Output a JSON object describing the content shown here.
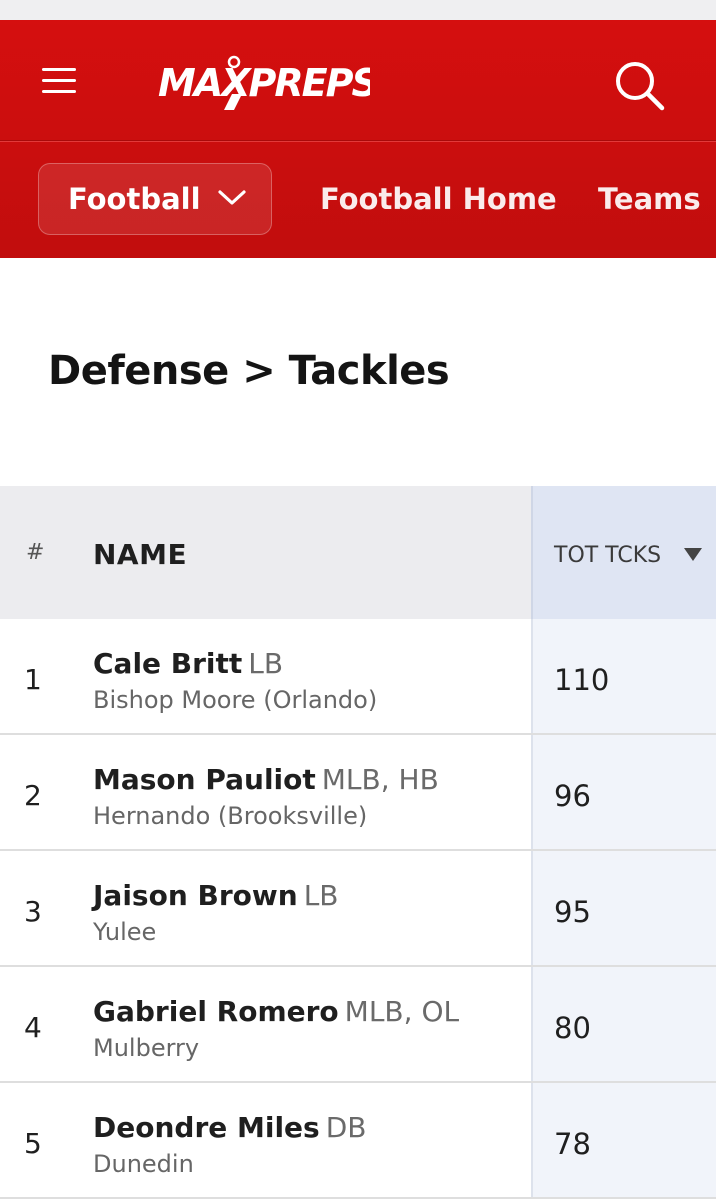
{
  "header": {
    "logo_text": "MAXPREPS",
    "colors": {
      "brand_red": "#c70f0f",
      "white": "#ffffff"
    },
    "icons": {
      "menu": "hamburger-menu-icon",
      "search": "search-icon",
      "dropdown": "chevron-down-icon"
    }
  },
  "nav": {
    "sport_select": "Football",
    "links": [
      "Football Home",
      "Teams"
    ]
  },
  "page": {
    "title": "Defense > Tackles"
  },
  "table": {
    "headers": {
      "rank": "#",
      "name": "NAME",
      "stat": "TOT TCKS"
    },
    "sort_direction": "descending",
    "rows": [
      {
        "rank": "1",
        "name": "Cale Britt",
        "position": "LB",
        "school": "Bishop Moore (Orlando)",
        "tot_tcks": "110"
      },
      {
        "rank": "2",
        "name": "Mason Pauliot",
        "position": "MLB, HB",
        "school": "Hernando (Brooksville)",
        "tot_tcks": "96"
      },
      {
        "rank": "3",
        "name": "Jaison Brown",
        "position": "LB",
        "school": "Yulee",
        "tot_tcks": "95"
      },
      {
        "rank": "4",
        "name": "Gabriel Romero",
        "position": "MLB, OL",
        "school": "Mulberry",
        "tot_tcks": "80"
      },
      {
        "rank": "5",
        "name": "Deondre Miles",
        "position": "DB",
        "school": "Dunedin",
        "tot_tcks": "78"
      }
    ]
  }
}
